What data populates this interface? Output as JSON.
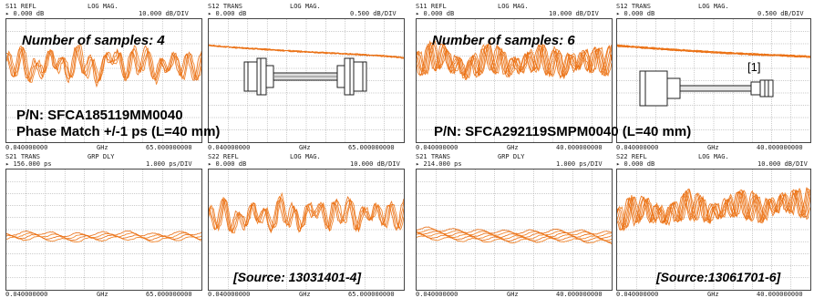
{
  "figures": [
    {
      "samples_label": "Number of samples: 4",
      "pn": "P/N: SFCA185119MM0040",
      "phase": "Phase Match +/-1 ps (L=40 mm)",
      "source": "[Source: 13031401-4]",
      "ref_label": "",
      "traces": [
        {
          "id": "S11",
          "meas": "S11 REFL",
          "fmt": "LOG MAG.",
          "ref": "0.000 dB",
          "scale": "10.000 dB/DIV",
          "start": "0.040000000",
          "unit": "GHz",
          "stop": "65.000000000"
        },
        {
          "id": "S12",
          "meas": "S12 TRANS",
          "fmt": "LOG MAG.",
          "ref": "0.000 dB",
          "scale": "0.500 dB/DIV",
          "start": "0.040000000",
          "unit": "GHz",
          "stop": "65.000000000"
        },
        {
          "id": "S21",
          "meas": "S21 TRANS",
          "fmt": "GRP DLY",
          "ref": "156.000 ps",
          "scale": "1.000 ps/DIV",
          "start": "0.040000000",
          "unit": "GHz",
          "stop": "65.000000000"
        },
        {
          "id": "S22",
          "meas": "S22 REFL",
          "fmt": "LOG MAG.",
          "ref": "0.000 dB",
          "scale": "10.000 dB/DIV",
          "start": "0.040000000",
          "unit": "GHz",
          "stop": "65.000000000"
        }
      ]
    },
    {
      "samples_label": "Number of samples: 6",
      "pn": "P/N: SFCA292119SMPM0040 (L=40 mm)",
      "phase": "",
      "source": "[Source:13061701-6]",
      "ref_label": "[1]",
      "traces": [
        {
          "id": "S11",
          "meas": "S11 REFL",
          "fmt": "LOG MAG.",
          "ref": "0.000 dB",
          "scale": "10.000 dB/DIV",
          "start": "0.040000000",
          "unit": "GHz",
          "stop": "40.000000000"
        },
        {
          "id": "S12",
          "meas": "S12 TRANS",
          "fmt": "LOG MAG.",
          "ref": "0.000 dB",
          "scale": "0.500 dB/DIV",
          "start": "0.040000000",
          "unit": "GHz",
          "stop": "40.000000000"
        },
        {
          "id": "S21",
          "meas": "S21 TRANS",
          "fmt": "GRP DLY",
          "ref": "214.000 ps",
          "scale": "1.000 ps/DIV",
          "start": "0.040000000",
          "unit": "GHz",
          "stop": "40.000000000"
        },
        {
          "id": "S22",
          "meas": "S22 REFL",
          "fmt": "LOG MAG.",
          "ref": "0.000 dB",
          "scale": "10.000 dB/DIV",
          "start": "0.040000000",
          "unit": "GHz",
          "stop": "40.000000000"
        }
      ]
    }
  ],
  "colors": {
    "trace": "#f07a1a",
    "trace2": "#e86a10",
    "grid": "#9a9a9a",
    "frame": "#333333"
  },
  "chart_data": [
    {
      "type": "line",
      "title": "S11 REFL LOG MAG.",
      "xlabel": "GHz",
      "xlim": [
        0.04,
        65
      ],
      "ylabel": "dB",
      "ylim": [
        -80,
        0
      ],
      "grid": true,
      "samples": 4,
      "series": [
        {
          "x": [
            0.04,
            5,
            10,
            15,
            20,
            25,
            30,
            35,
            40,
            45,
            50,
            55,
            60,
            65
          ],
          "values": [
            -27,
            -24,
            -32,
            -21,
            -30,
            -22,
            -33,
            -20,
            -29,
            -21,
            -31,
            -24,
            -28,
            -27
          ]
        }
      ]
    },
    {
      "type": "line",
      "title": "S12 TRANS LOG MAG.",
      "xlabel": "GHz",
      "xlim": [
        0.04,
        65
      ],
      "ylabel": "dB",
      "ylim": [
        -4,
        1
      ],
      "grid": true,
      "samples": 4,
      "series": [
        {
          "x": [
            0.04,
            10,
            20,
            30,
            40,
            50,
            60,
            65
          ],
          "values": [
            -0.05,
            -0.15,
            -0.22,
            -0.3,
            -0.36,
            -0.42,
            -0.5,
            -0.55
          ]
        }
      ]
    },
    {
      "type": "line",
      "title": "S21 TRANS GRP DLY",
      "xlabel": "GHz",
      "xlim": [
        0.04,
        65
      ],
      "ylabel": "ps",
      "ylim": [
        151,
        161
      ],
      "grid": true,
      "samples": 4,
      "series": [
        {
          "x": [
            0.04,
            10,
            20,
            30,
            40,
            50,
            60,
            65
          ],
          "values": [
            155.5,
            155.6,
            155.4,
            155.5,
            155.6,
            155.4,
            155.6,
            155.5
          ]
        }
      ]
    },
    {
      "type": "line",
      "title": "S22 REFL LOG MAG.",
      "xlabel": "GHz",
      "xlim": [
        0.04,
        65
      ],
      "ylabel": "dB",
      "ylim": [
        -80,
        0
      ],
      "grid": true,
      "samples": 4,
      "series": [
        {
          "x": [
            0.04,
            5,
            10,
            15,
            20,
            25,
            30,
            35,
            40,
            45,
            50,
            55,
            60,
            65
          ],
          "values": [
            -30,
            -26,
            -33,
            -24,
            -31,
            -23,
            -32,
            -22,
            -29,
            -23,
            -30,
            -25,
            -28,
            -27
          ]
        }
      ]
    },
    {
      "type": "line",
      "title": "S11 REFL LOG MAG.",
      "xlabel": "GHz",
      "xlim": [
        0.04,
        40
      ],
      "ylabel": "dB",
      "ylim": [
        -80,
        0
      ],
      "grid": true,
      "samples": 6,
      "series": [
        {
          "x": [
            0.04,
            5,
            10,
            15,
            20,
            25,
            30,
            35,
            40
          ],
          "values": [
            -26,
            -20,
            -30,
            -21,
            -28,
            -22,
            -27,
            -23,
            -24
          ]
        }
      ]
    },
    {
      "type": "line",
      "title": "S12 TRANS LOG MAG.",
      "xlabel": "GHz",
      "xlim": [
        0.04,
        40
      ],
      "ylabel": "dB",
      "ylim": [
        -4,
        1
      ],
      "grid": true,
      "samples": 6,
      "series": [
        {
          "x": [
            0.04,
            10,
            20,
            30,
            40
          ],
          "values": [
            -0.05,
            -0.2,
            -0.32,
            -0.42,
            -0.5
          ]
        }
      ]
    },
    {
      "type": "line",
      "title": "S21 TRANS GRP DLY",
      "xlabel": "GHz",
      "xlim": [
        0.04,
        40
      ],
      "ylabel": "ps",
      "ylim": [
        209,
        219
      ],
      "grid": true,
      "samples": 6,
      "series": [
        {
          "x": [
            0.04,
            10,
            20,
            30,
            40
          ],
          "values": [
            213.8,
            213.6,
            213.5,
            213.6,
            213.4
          ]
        }
      ]
    },
    {
      "type": "line",
      "title": "S22 REFL LOG MAG.",
      "xlabel": "GHz",
      "xlim": [
        0.04,
        40
      ],
      "ylabel": "dB",
      "ylim": [
        -80,
        0
      ],
      "grid": true,
      "samples": 6,
      "series": [
        {
          "x": [
            0.04,
            5,
            10,
            15,
            20,
            25,
            30,
            35,
            40
          ],
          "values": [
            -30,
            -22,
            -28,
            -20,
            -26,
            -19,
            -24,
            -18,
            -20
          ]
        }
      ]
    }
  ]
}
